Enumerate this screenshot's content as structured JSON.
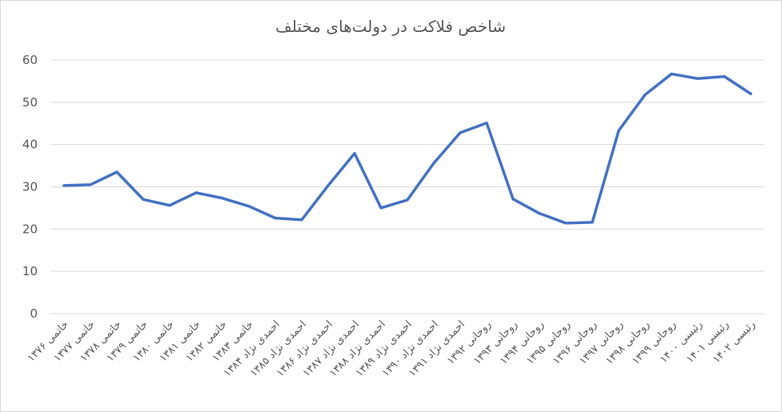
{
  "chart_data": {
    "type": "line",
    "title": "شاخص فلاکت در دولت‌های مختلف",
    "categories": [
      "خاتمی ۱۳۷۶",
      "خاتمی ۱۳۷۷",
      "خاتمی ۱۳۷۸",
      "خاتمی ۱۳۷۹",
      "خاتمی ۱۳۸۰",
      "خاتمی ۱۳۸۱",
      "خاتمی ۱۳۸۲",
      "خاتمی ۱۳۸۳",
      "احمدی نژاد ۱۳۸۴",
      "احمدی نژاد ۱۳۸۵",
      "احمدی نژاد ۱۳۸۶",
      "احمدی نژاد ۱۳۸۷",
      "احمدی نژاد ۱۳۸۸",
      "احمدی نژاد ۱۳۸۹",
      "احمدی نژاد ۱۳۹۰",
      "احمدی نژاد ۱۳۹۱",
      "روحانی ۱۳۹۲",
      "روحانی ۱۳۹۳",
      "روحانی ۱۳۹۴",
      "روحانی ۱۳۹۵",
      "روحانی ۱۳۹۶",
      "روحانی ۱۳۹۷",
      "روحانی ۱۳۹۸",
      "روحانی ۱۳۹۹",
      "رئیسی ۱۴۰۰",
      "رئیسی ۱۴۰۱",
      "رئیسی ۱۴۰۲"
    ],
    "values": [
      30.3,
      30.5,
      33.5,
      27,
      25.6,
      28.6,
      27.3,
      25.4,
      22.6,
      22.2,
      30.3,
      37.9,
      25,
      26.9,
      35.6,
      42.8,
      45.1,
      27.1,
      23.7,
      21.4,
      21.6,
      43.3,
      51.8,
      56.7,
      55.6,
      56.1,
      52
    ],
    "color": "#4472c4",
    "ylim": [
      0,
      60
    ],
    "yticks": [
      0,
      10,
      20,
      30,
      40,
      50,
      60
    ],
    "grid": true
  }
}
